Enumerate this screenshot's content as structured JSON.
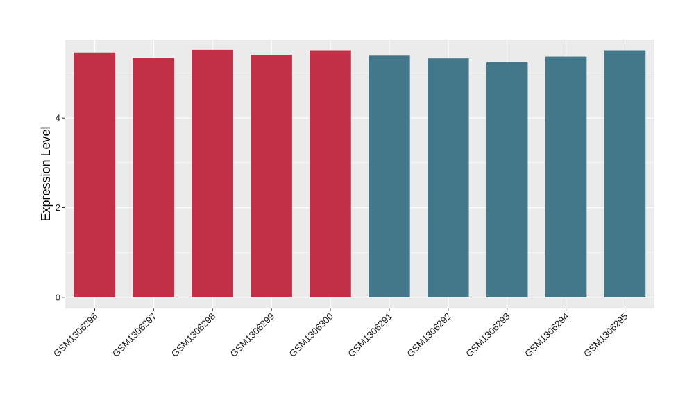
{
  "chart_data": {
    "type": "bar",
    "title": "",
    "xlabel": "",
    "ylabel": "Expression Level",
    "ylim": [
      -0.25,
      5.75
    ],
    "y_ticks": [
      0,
      2,
      4
    ],
    "grid": true,
    "categories": [
      "GSM1306296",
      "GSM1306297",
      "GSM1306298",
      "GSM1306299",
      "GSM1306300",
      "GSM1306291",
      "GSM1306292",
      "GSM1306293",
      "GSM1306294",
      "GSM1306295"
    ],
    "values": [
      5.46,
      5.34,
      5.52,
      5.41,
      5.51,
      5.39,
      5.33,
      5.24,
      5.37,
      5.51
    ],
    "bar_colors": [
      "#c23047",
      "#c23047",
      "#c23047",
      "#c23047",
      "#c23047",
      "#43788a",
      "#43788a",
      "#43788a",
      "#43788a",
      "#43788a"
    ],
    "panel_background": "#ebebeb",
    "grid_color": "#ffffff"
  }
}
